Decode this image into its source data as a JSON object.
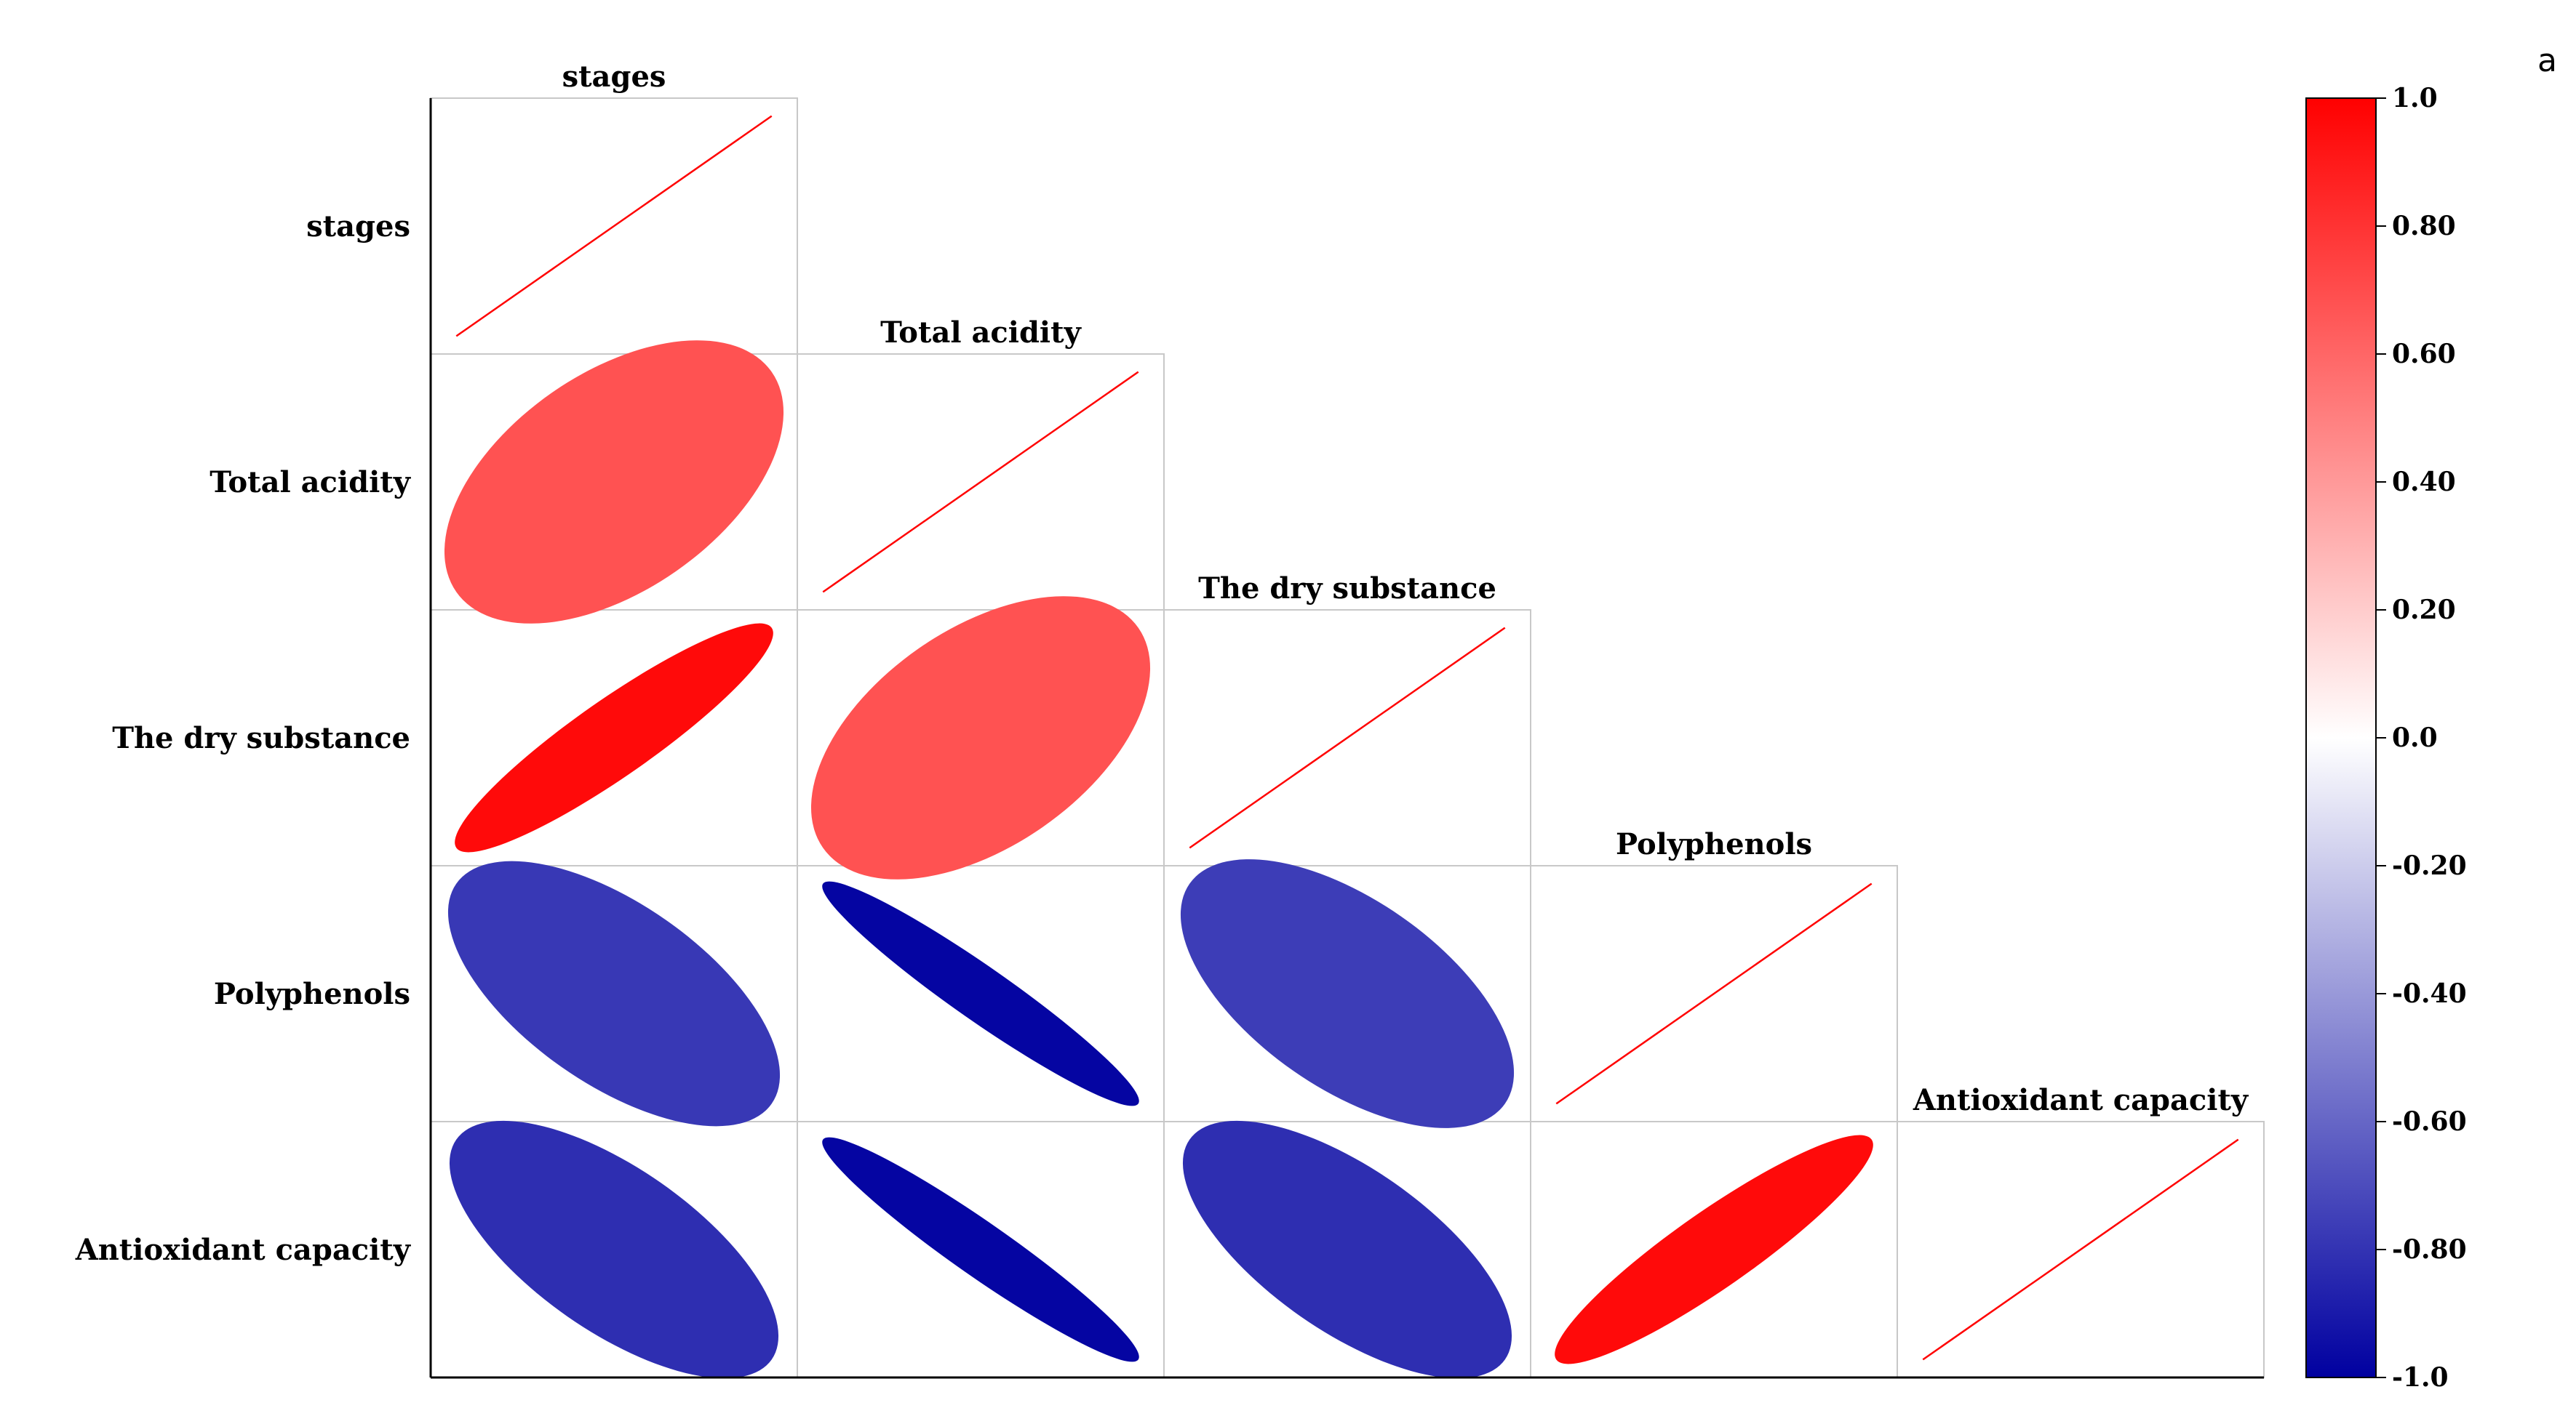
{
  "panel_label": "a",
  "chart_data": {
    "type": "heatmap",
    "subtype": "correlation-ellipse-matrix",
    "triangle": "lower",
    "variables": [
      "stages",
      "Total acidity",
      "The dry substance",
      "Polyphenols",
      "Antioxidant capacity"
    ],
    "matrix": [
      [
        1.0,
        0.68,
        0.96,
        -0.78,
        -0.82
      ],
      [
        0.68,
        1.0,
        0.68,
        -0.98,
        -0.98
      ],
      [
        0.96,
        0.68,
        1.0,
        -0.76,
        -0.82
      ],
      [
        -0.78,
        -0.98,
        -0.76,
        1.0,
        0.96
      ],
      [
        -0.82,
        -0.98,
        -0.82,
        0.96,
        1.0
      ]
    ],
    "colorbar": {
      "range": [
        -1.0,
        1.0
      ],
      "ticks": [
        {
          "value": 1.0,
          "label": "1.0"
        },
        {
          "value": 0.8,
          "label": "0.80"
        },
        {
          "value": 0.6,
          "label": "0.60"
        },
        {
          "value": 0.4,
          "label": "0.40"
        },
        {
          "value": 0.2,
          "label": "0.20"
        },
        {
          "value": 0.0,
          "label": "0.0"
        },
        {
          "value": -0.2,
          "label": "-0.20"
        },
        {
          "value": -0.4,
          "label": "-0.40"
        },
        {
          "value": -0.6,
          "label": "-0.60"
        },
        {
          "value": -0.8,
          "label": "-0.80"
        },
        {
          "value": -1.0,
          "label": "-1.0"
        }
      ],
      "color_low": "#0000a0",
      "color_mid": "#ffffff",
      "color_high": "#ff0000"
    },
    "diagonal_line_color": "#ff0000",
    "grid_color": "#c8c8c8"
  }
}
